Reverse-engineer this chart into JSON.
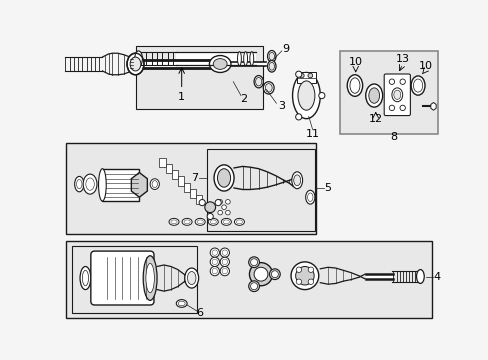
{
  "bg_color": "#f5f5f5",
  "white": "#ffffff",
  "light_gray": "#e8e8e8",
  "mid_gray": "#d0d0d0",
  "dark_gray": "#a0a0a0",
  "line_color": "#1a1a1a",
  "box_stroke": "#666666"
}
